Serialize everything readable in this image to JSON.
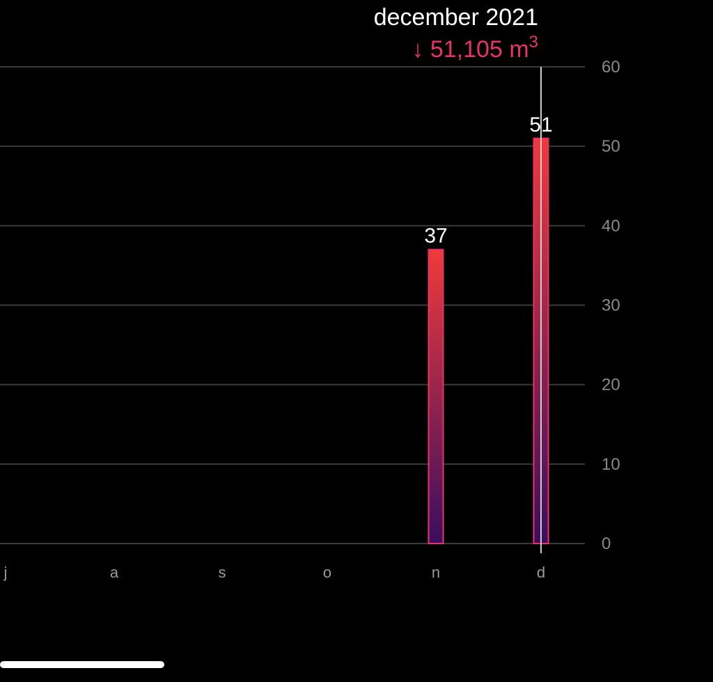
{
  "header": {
    "period": "december 2021",
    "value_text": "51,105 m",
    "unit_superscript": "3",
    "trend_arrow": "↓",
    "accent_color": "#e8336a"
  },
  "chart_data": {
    "type": "bar",
    "categories": [
      "j",
      "a",
      "s",
      "o",
      "n",
      "d"
    ],
    "values": [
      null,
      null,
      null,
      null,
      37,
      51
    ],
    "data_labels": [
      "",
      "",
      "",
      "",
      "37",
      "51"
    ],
    "yticks": [
      0,
      10,
      20,
      30,
      40,
      50,
      60
    ],
    "ylim": [
      0,
      60
    ],
    "selected_category": "d",
    "bar_gradient": {
      "top": "#ef3a3a",
      "bottom": "#3a0e5e",
      "border": "#e8336a"
    },
    "grid": true
  }
}
